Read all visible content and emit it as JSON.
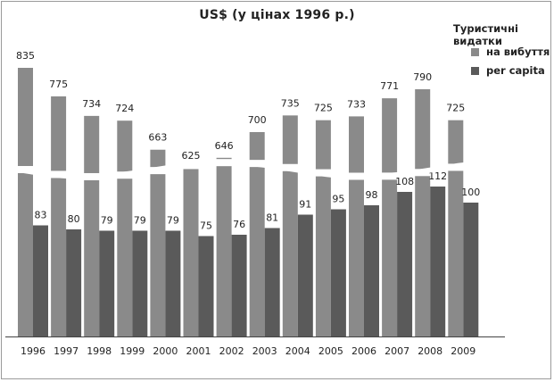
{
  "chart_data": {
    "type": "bar",
    "title": "US$ (у цінах 1996 р.)",
    "legend_title": "Туристичні видатки",
    "legend_position": "top-right",
    "categories": [
      "1996",
      "1997",
      "1998",
      "1999",
      "2000",
      "2001",
      "2002",
      "2003",
      "2004",
      "2005",
      "2006",
      "2007",
      "2008",
      "2009"
    ],
    "series": [
      {
        "name": "на вибуття",
        "values": [
          835,
          775,
          734,
          724,
          663,
          625,
          646,
          700,
          735,
          725,
          733,
          771,
          790,
          725
        ],
        "color": "#8a8a8a"
      },
      {
        "name": "per capita",
        "values": [
          83,
          80,
          79,
          79,
          79,
          75,
          76,
          81,
          91,
          95,
          98,
          108,
          112,
          100
        ],
        "color": "#5a5a5a"
      }
    ],
    "axis_break": true,
    "grid": false
  }
}
